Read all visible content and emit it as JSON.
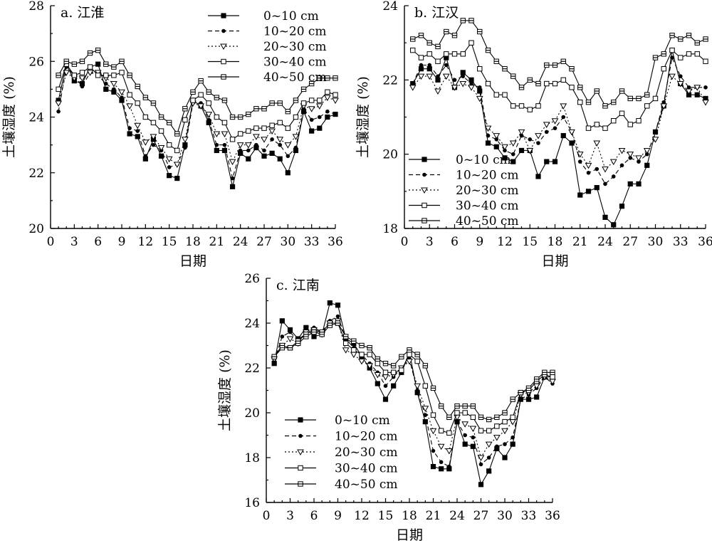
{
  "chart_data": [
    {
      "type": "line",
      "title": "a. 江淮",
      "xlabel": "日期",
      "ylabel": "土壤湿度 (%)",
      "xlim": [
        0,
        36
      ],
      "ylim": [
        20,
        28
      ],
      "x_ticks": [
        0,
        3,
        6,
        9,
        12,
        15,
        18,
        21,
        24,
        27,
        30,
        33,
        36
      ],
      "y_ticks": [
        20,
        22,
        24,
        26,
        28
      ],
      "legend_position": "top-center",
      "x": [
        1,
        2,
        3,
        4,
        5,
        6,
        7,
        8,
        9,
        10,
        11,
        12,
        13,
        14,
        15,
        16,
        17,
        18,
        19,
        20,
        21,
        22,
        23,
        24,
        25,
        26,
        27,
        28,
        29,
        30,
        31,
        32,
        33,
        34,
        35,
        36
      ],
      "series": [
        {
          "name": "0~10 cm",
          "marker": "filled-square",
          "dash": "solid",
          "values": [
            24.6,
            25.9,
            25.3,
            25.2,
            25.8,
            25.9,
            25.0,
            24.9,
            24.6,
            23.4,
            23.3,
            22.5,
            23.2,
            22.6,
            21.9,
            21.8,
            23.0,
            24.6,
            24.4,
            23.8,
            22.8,
            22.8,
            21.5,
            22.7,
            22.5,
            22.9,
            22.6,
            22.7,
            22.5,
            22.0,
            22.8,
            24.2,
            23.5,
            23.6,
            24.0,
            24.1
          ]
        },
        {
          "name": "10~20 cm",
          "marker": "filled-circle",
          "dash": "dashed",
          "values": [
            24.2,
            25.8,
            25.5,
            25.1,
            25.6,
            25.5,
            25.2,
            25.0,
            24.7,
            23.6,
            23.5,
            22.6,
            23.0,
            22.8,
            22.2,
            22.3,
            22.9,
            24.5,
            24.5,
            23.9,
            23.0,
            23.0,
            21.8,
            22.8,
            22.8,
            23.0,
            22.8,
            23.2,
            23.0,
            22.6,
            22.9,
            24.3,
            23.9,
            24.0,
            24.2,
            24.1
          ]
        },
        {
          "name": "20~30 cm",
          "marker": "open-triangle-down",
          "dash": "dotted",
          "values": [
            24.5,
            25.6,
            25.4,
            25.4,
            25.6,
            25.6,
            25.4,
            25.2,
            24.9,
            24.4,
            23.7,
            23.1,
            23.3,
            22.9,
            22.5,
            22.3,
            23.2,
            24.5,
            24.4,
            24.1,
            23.4,
            23.4,
            22.4,
            23.0,
            23.0,
            23.3,
            23.2,
            23.5,
            23.2,
            23.0,
            23.3,
            24.4,
            24.3,
            24.4,
            24.7,
            24.6
          ]
        },
        {
          "name": "30~40 cm",
          "marker": "open-square",
          "dash": "solid",
          "values": [
            25.0,
            25.9,
            25.5,
            25.6,
            25.8,
            25.5,
            25.5,
            25.5,
            25.6,
            24.8,
            24.5,
            24.0,
            23.8,
            23.5,
            23.0,
            22.8,
            23.9,
            24.6,
            24.8,
            24.5,
            24.0,
            23.8,
            23.2,
            23.4,
            23.5,
            23.6,
            23.6,
            23.7,
            23.8,
            23.6,
            24.0,
            24.5,
            24.6,
            24.6,
            24.9,
            24.8
          ]
        },
        {
          "name": "40~50 cm",
          "marker": "crossed-square",
          "dash": "solid",
          "values": [
            25.5,
            26.0,
            25.9,
            26.0,
            26.3,
            26.4,
            25.9,
            25.8,
            26.0,
            25.5,
            25.1,
            24.7,
            24.5,
            24.0,
            23.8,
            23.4,
            24.3,
            24.9,
            25.3,
            24.9,
            24.7,
            24.6,
            24.0,
            24.0,
            24.1,
            24.3,
            24.3,
            24.5,
            24.5,
            24.2,
            24.6,
            25.0,
            25.2,
            25.4,
            25.4,
            25.4
          ]
        }
      ]
    },
    {
      "type": "line",
      "title": "b. 江汉",
      "xlabel": "日期",
      "ylabel": "土壤湿度 (%)",
      "xlim": [
        0,
        36
      ],
      "ylim": [
        18,
        24
      ],
      "x_ticks": [
        0,
        3,
        6,
        9,
        12,
        15,
        18,
        21,
        24,
        27,
        30,
        33,
        36
      ],
      "y_ticks": [
        18,
        20,
        22,
        24
      ],
      "legend_position": "bottom-left",
      "x": [
        1,
        2,
        3,
        4,
        5,
        6,
        7,
        8,
        9,
        10,
        11,
        12,
        13,
        14,
        15,
        16,
        17,
        18,
        19,
        20,
        21,
        22,
        23,
        24,
        25,
        26,
        27,
        28,
        29,
        30,
        31,
        32,
        33,
        34,
        35,
        36
      ],
      "series": [
        {
          "name": "0~10 cm",
          "marker": "filled-square",
          "dash": "solid",
          "values": [
            21.9,
            22.3,
            22.3,
            22.0,
            22.6,
            21.8,
            22.2,
            22.0,
            21.7,
            20.3,
            20.2,
            19.9,
            19.8,
            20.1,
            20.1,
            19.4,
            19.8,
            19.8,
            20.5,
            20.3,
            18.9,
            19.0,
            19.1,
            18.3,
            18.1,
            18.6,
            19.2,
            19.2,
            19.7,
            20.6,
            21.3,
            22.8,
            21.9,
            21.6,
            21.6,
            21.5
          ]
        },
        {
          "name": "10~20 cm",
          "marker": "filled-circle",
          "dash": "dashed",
          "values": [
            21.9,
            22.4,
            22.4,
            22.1,
            22.4,
            22.0,
            22.1,
            21.9,
            21.8,
            20.5,
            20.4,
            20.1,
            20.0,
            20.5,
            20.4,
            20.3,
            20.6,
            20.7,
            21.0,
            20.6,
            19.8,
            19.5,
            19.6,
            19.2,
            19.4,
            19.7,
            19.9,
            19.8,
            20.0,
            20.6,
            21.4,
            22.6,
            22.1,
            21.8,
            21.8,
            21.8
          ]
        },
        {
          "name": "20~30 cm",
          "marker": "open-triangle-down",
          "dash": "dotted",
          "values": [
            21.8,
            22.1,
            22.1,
            21.7,
            22.1,
            21.8,
            21.9,
            21.8,
            21.5,
            20.7,
            20.5,
            20.2,
            20.3,
            20.6,
            20.1,
            20.5,
            20.8,
            20.9,
            21.3,
            20.6,
            20.0,
            19.7,
            20.3,
            19.6,
            19.8,
            20.1,
            20.0,
            19.9,
            20.1,
            20.4,
            21.3,
            22.1,
            21.9,
            21.7,
            21.8,
            21.4
          ]
        },
        {
          "name": "30~40 cm",
          "marker": "open-square",
          "dash": "solid",
          "values": [
            22.8,
            22.6,
            22.7,
            22.5,
            22.7,
            22.7,
            22.7,
            23.0,
            22.3,
            21.9,
            21.6,
            21.6,
            21.3,
            21.3,
            21.2,
            21.3,
            21.9,
            21.9,
            22.0,
            21.8,
            21.4,
            20.7,
            20.8,
            20.7,
            20.9,
            21.1,
            20.8,
            20.9,
            21.3,
            21.5,
            22.3,
            22.8,
            22.6,
            22.7,
            22.7,
            22.5
          ]
        },
        {
          "name": "40~50 cm",
          "marker": "crossed-square",
          "dash": "solid",
          "values": [
            23.1,
            23.2,
            23.0,
            22.9,
            23.3,
            23.2,
            23.6,
            23.6,
            23.3,
            22.8,
            22.5,
            22.3,
            22.1,
            21.8,
            22.0,
            21.9,
            22.4,
            22.4,
            22.5,
            22.3,
            21.8,
            21.4,
            21.7,
            21.3,
            21.4,
            21.7,
            21.5,
            21.5,
            21.6,
            22.6,
            22.7,
            23.2,
            23.1,
            23.2,
            23.0,
            23.1
          ]
        }
      ]
    },
    {
      "type": "line",
      "title": "c. 江南",
      "xlabel": "日期",
      "ylabel": "土壤湿度 (%)",
      "xlim": [
        0,
        36
      ],
      "ylim": [
        16,
        26
      ],
      "x_ticks": [
        0,
        3,
        6,
        9,
        12,
        15,
        18,
        21,
        24,
        27,
        30,
        33,
        36
      ],
      "y_ticks": [
        16,
        18,
        20,
        22,
        24,
        26
      ],
      "legend_position": "bottom-left",
      "x": [
        1,
        2,
        3,
        4,
        5,
        6,
        7,
        8,
        9,
        10,
        11,
        12,
        13,
        14,
        15,
        16,
        17,
        18,
        19,
        20,
        21,
        22,
        23,
        24,
        25,
        26,
        27,
        28,
        29,
        30,
        31,
        32,
        33,
        34,
        35,
        36
      ],
      "series": [
        {
          "name": "0~10 cm",
          "marker": "filled-square",
          "dash": "solid",
          "values": [
            22.2,
            24.1,
            23.7,
            23.3,
            23.8,
            23.4,
            23.5,
            24.9,
            24.8,
            23.3,
            23.1,
            22.5,
            22.0,
            21.3,
            20.6,
            21.2,
            21.8,
            22.7,
            20.9,
            19.6,
            17.6,
            17.5,
            17.5,
            19.6,
            18.6,
            18.5,
            16.8,
            17.4,
            18.4,
            18.0,
            18.6,
            20.6,
            20.6,
            20.7,
            21.6,
            21.6
          ]
        },
        {
          "name": "10~20 cm",
          "marker": "filled-circle",
          "dash": "dashed",
          "values": [
            22.3,
            23.4,
            23.6,
            23.2,
            23.6,
            23.8,
            23.6,
            24.1,
            24.3,
            23.3,
            22.9,
            22.6,
            22.2,
            21.8,
            21.2,
            21.6,
            22.0,
            22.4,
            21.0,
            19.9,
            18.3,
            17.8,
            17.6,
            19.6,
            19.0,
            18.9,
            17.7,
            18.0,
            18.5,
            18.6,
            18.9,
            20.6,
            20.8,
            21.1,
            21.6,
            21.3
          ]
        },
        {
          "name": "20~30 cm",
          "marker": "open-triangle-down",
          "dash": "dotted",
          "values": [
            22.4,
            23.0,
            23.3,
            23.1,
            23.6,
            23.7,
            23.5,
            24.0,
            24.1,
            22.8,
            22.6,
            22.3,
            22.1,
            21.7,
            21.6,
            21.7,
            22.0,
            22.3,
            21.2,
            20.2,
            19.2,
            18.5,
            18.3,
            19.8,
            19.5,
            19.3,
            18.0,
            18.6,
            18.9,
            19.2,
            19.6,
            20.8,
            20.9,
            21.2,
            21.6,
            21.4
          ]
        },
        {
          "name": "30~40 cm",
          "marker": "open-square",
          "dash": "solid",
          "values": [
            22.5,
            22.9,
            22.9,
            23.1,
            23.4,
            23.6,
            23.5,
            23.9,
            24.0,
            23.1,
            22.8,
            22.6,
            22.6,
            22.2,
            21.8,
            21.8,
            21.9,
            22.6,
            22.3,
            21.2,
            19.9,
            19.2,
            19.1,
            20.0,
            20.0,
            19.8,
            19.2,
            19.2,
            19.4,
            19.6,
            19.8,
            20.9,
            21.0,
            21.4,
            21.7,
            21.6
          ]
        },
        {
          "name": "40~50 cm",
          "marker": "crossed-square",
          "dash": "solid",
          "values": [
            22.5,
            23.0,
            22.9,
            23.2,
            23.5,
            23.7,
            23.6,
            24.0,
            24.0,
            23.4,
            23.2,
            23.0,
            22.9,
            22.4,
            22.2,
            22.1,
            22.5,
            22.8,
            22.6,
            22.1,
            21.1,
            20.3,
            19.8,
            20.3,
            20.3,
            20.3,
            19.8,
            19.7,
            19.8,
            20.0,
            20.6,
            20.9,
            21.1,
            21.5,
            21.8,
            21.8
          ]
        }
      ]
    }
  ]
}
